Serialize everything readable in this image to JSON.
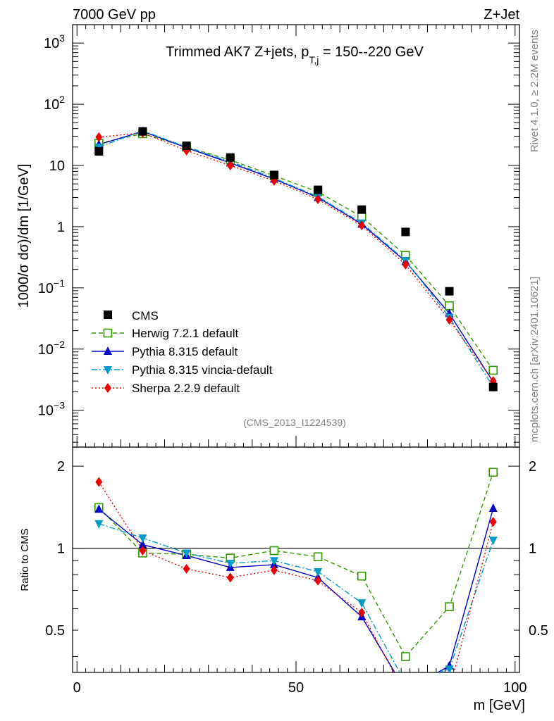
{
  "header": {
    "left": "7000 GeV pp",
    "right": "Z+Jet"
  },
  "side_labels": {
    "rivet": "Rivet 4.1.0, ≥ 2.2M events",
    "mcplots": "mcplots.cern.ch [arXiv:2401.10621]"
  },
  "chart_data": {
    "type": "line",
    "title_main": "Trimmed AK7 Z+jets, p",
    "title_sub": "T,j",
    "title_rest": " = 150--220 GeV",
    "xlabel": "m [GeV]",
    "ylabel": "1000/σ  dσ)/dm [1/GeV]",
    "ratio_ylabel": "Ratio to CMS",
    "analysis_id": "(CMS_2013_I1224539)",
    "x": [
      5,
      15,
      25,
      35,
      45,
      55,
      65,
      75,
      85,
      95
    ],
    "xlim": [
      -1,
      101
    ],
    "ylim": [
      0.00025,
      2000
    ],
    "ratio_ylim": [
      0.35,
      2.35
    ],
    "x_ticks": [
      "0",
      "50",
      "100"
    ],
    "y_ticks": [
      "10^-3",
      "10^-2",
      "10^-1",
      "1",
      "10",
      "10^2",
      "10^3"
    ],
    "ratio_ticks": [
      "0.5",
      "1",
      "2"
    ],
    "data": {
      "name": "CMS",
      "values": [
        17,
        36,
        21,
        13.5,
        7,
        4,
        1.9,
        0.82,
        0.088,
        0.0024
      ]
    },
    "series": [
      {
        "name": "Herwig 7.2.1 default",
        "color": "#339900",
        "marker": "open-square",
        "dash": "6,4",
        "values": [
          23,
          33,
          20,
          12.3,
          6.8,
          3.7,
          1.45,
          0.34,
          0.051,
          0.0045
        ],
        "ratio": [
          1.41,
          0.96,
          0.95,
          0.92,
          0.98,
          0.93,
          0.79,
          0.4,
          0.61,
          1.9
        ]
      },
      {
        "name": "Pythia 8.315 default",
        "color": "#0000cc",
        "marker": "triangle-up",
        "dash": "",
        "values": [
          22,
          36,
          19.5,
          11,
          6,
          3,
          1.1,
          0.27,
          0.038,
          0.0029
        ],
        "ratio": [
          1.39,
          1.03,
          0.94,
          0.85,
          0.87,
          0.78,
          0.56,
          0.3,
          0.37,
          1.4
        ]
      },
      {
        "name": "Pythia 8.315 vincia-default",
        "color": "#0099cc",
        "marker": "triangle-down",
        "dash": "8,3,2,3",
        "values": [
          20,
          37,
          20,
          11.5,
          6.2,
          3.1,
          1.15,
          0.28,
          0.033,
          0.0024
        ],
        "ratio": [
          1.23,
          1.09,
          0.96,
          0.88,
          0.9,
          0.82,
          0.63,
          0.32,
          0.36,
          1.07
        ]
      },
      {
        "name": "Sherpa 2.2.9 default",
        "color": "#ee0000",
        "marker": "diamond",
        "dash": "2,3",
        "values": [
          29,
          34,
          17.5,
          10,
          5.6,
          2.8,
          1.05,
          0.24,
          0.03,
          0.003
        ],
        "ratio": [
          1.75,
          0.98,
          0.84,
          0.78,
          0.83,
          0.76,
          0.58,
          0.29,
          0.3,
          1.25
        ]
      }
    ],
    "ratio_reference": 1
  }
}
